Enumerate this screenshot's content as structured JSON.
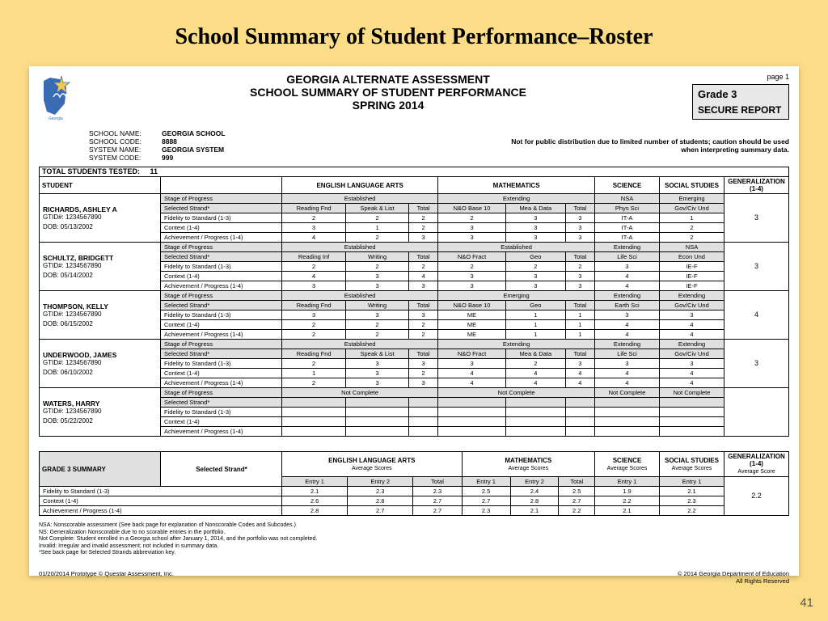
{
  "slide": {
    "title": "School Summary of Student Performance–Roster",
    "number": "41"
  },
  "header": {
    "line1": "GEORGIA ALTERNATE ASSESSMENT",
    "line2": "SCHOOL SUMMARY OF STUDENT PERFORMANCE",
    "line3": "SPRING 2014",
    "page": "page 1",
    "grade": "Grade 3",
    "secure": "SECURE REPORT"
  },
  "meta": {
    "school_name_lab": "SCHOOL NAME:",
    "school_name": "GEORGIA SCHOOL",
    "school_code_lab": "SCHOOL CODE:",
    "school_code": "8888",
    "system_name_lab": "SYSTEM NAME:",
    "system_name": "GEORGIA SYSTEM",
    "system_code_lab": "SYSTEM CODE:",
    "system_code": "999"
  },
  "disclaimer": "Not for public distribution due to limited number of students; caution should be used when interpreting summary data.",
  "totals": {
    "label": "TOTAL STUDENTS TESTED:",
    "value": "11"
  },
  "subjects": {
    "student": "STUDENT",
    "ela": "ENGLISH LANGUAGE ARTS",
    "math": "MATHEMATICS",
    "sci": "SCIENCE",
    "ss": "SOCIAL STUDIES",
    "gen": "GENERALIZATION (1-4)"
  },
  "row_labels": {
    "stage": "Stage of Progress",
    "strand": "Selected Strand*",
    "fidelity": "Fidelity to Standard (1-3)",
    "context": "Context (1-4)",
    "achieve": "Achievement / Progress (1-4)"
  },
  "students": [
    {
      "name": "RICHARDS, ASHLEY A",
      "gtid": "GTID#: 1234567890",
      "dob": "DOB: 05/13/2002",
      "stage": [
        "Established",
        "Extending",
        "NSA",
        "Emerging"
      ],
      "strand_cols": [
        "Reading Fnd",
        "Speak & List",
        "Total",
        "N&O Base 10",
        "Mea & Data",
        "Total",
        "Phys Sci",
        "Gov/Civ Und"
      ],
      "fidelity": [
        "2",
        "2",
        "2",
        "2",
        "3",
        "3",
        "IT-A",
        "1"
      ],
      "context": [
        "3",
        "1",
        "2",
        "3",
        "3",
        "3",
        "IT-A",
        "2"
      ],
      "achieve": [
        "4",
        "2",
        "3",
        "3",
        "3",
        "3",
        "IT-A",
        "2"
      ],
      "gen": "3"
    },
    {
      "name": "SCHULTZ, BRIDGETT",
      "gtid": "GTID#: 1234567890",
      "dob": "DOB: 05/14/2002",
      "stage": [
        "Established",
        "Established",
        "Extending",
        "NSA"
      ],
      "strand_cols": [
        "Reading Inf",
        "Writing",
        "Total",
        "N&O Fract",
        "Geo",
        "Total",
        "Life Sci",
        "Econ Und"
      ],
      "fidelity": [
        "2",
        "2",
        "2",
        "2",
        "2",
        "2",
        "3",
        "IE-F"
      ],
      "context": [
        "4",
        "3",
        "4",
        "3",
        "3",
        "3",
        "4",
        "IE-F"
      ],
      "achieve": [
        "3",
        "3",
        "3",
        "3",
        "3",
        "3",
        "4",
        "IE-F"
      ],
      "gen": "3"
    },
    {
      "name": "THOMPSON, KELLY",
      "gtid": "GTID#: 1234567890",
      "dob": "DOB: 06/15/2002",
      "stage": [
        "Established",
        "Emerging",
        "Extending",
        "Extending"
      ],
      "strand_cols": [
        "Reading Fnd",
        "Writing",
        "Total",
        "N&O Base 10",
        "Geo",
        "Total",
        "Earth Sci",
        "Gov/Civ Und"
      ],
      "fidelity": [
        "3",
        "3",
        "3",
        "ME",
        "1",
        "1",
        "3",
        "3"
      ],
      "context": [
        "2",
        "2",
        "2",
        "ME",
        "1",
        "1",
        "4",
        "4"
      ],
      "achieve": [
        "2",
        "2",
        "2",
        "ME",
        "1",
        "1",
        "4",
        "4"
      ],
      "gen": "4"
    },
    {
      "name": "UNDERWOOD, JAMES",
      "gtid": "GTID#: 1234567890",
      "dob": "DOB: 06/10/2002",
      "stage": [
        "Established",
        "Extending",
        "Extending",
        "Extending"
      ],
      "strand_cols": [
        "Reading Fnd",
        "Speak & List",
        "Total",
        "N&O Fract",
        "Mea & Data",
        "Total",
        "Life Sci",
        "Gov/Civ Und"
      ],
      "fidelity": [
        "2",
        "3",
        "3",
        "3",
        "2",
        "3",
        "3",
        "3"
      ],
      "context": [
        "1",
        "3",
        "2",
        "4",
        "4",
        "4",
        "4",
        "4"
      ],
      "achieve": [
        "2",
        "3",
        "3",
        "4",
        "4",
        "4",
        "4",
        "4"
      ],
      "gen": "3"
    },
    {
      "name": "WATERS, HARRY",
      "gtid": "GTID#: 1234567890",
      "dob": "DOB: 05/22/2002",
      "stage": [
        "Not Complete",
        "Not Complete",
        "Not Complete",
        "Not Complete"
      ],
      "strand_cols": [
        "",
        "",
        "",
        "",
        "",
        "",
        "",
        ""
      ],
      "fidelity": [
        "",
        "",
        "",
        "",
        "",
        "",
        "",
        ""
      ],
      "context": [
        "",
        "",
        "",
        "",
        "",
        "",
        "",
        ""
      ],
      "achieve": [
        "",
        "",
        "",
        "",
        "",
        "",
        "",
        ""
      ],
      "gen": ""
    }
  ],
  "summary": {
    "label": "GRADE 3 SUMMARY",
    "subj_suffix": "Average Scores",
    "gen_suffix": "Average Score",
    "cols": [
      "Entry 1",
      "Entry 2",
      "Total",
      "Entry 1",
      "Entry 2",
      "Total",
      "Entry 1",
      "Entry 1"
    ],
    "fidelity": [
      "2.1",
      "2.3",
      "2.3",
      "2.5",
      "2.4",
      "2.5",
      "1.9",
      "2.1"
    ],
    "context": [
      "2.6",
      "2.8",
      "2.7",
      "2.7",
      "2.8",
      "2.7",
      "2.2",
      "2.3"
    ],
    "achieve": [
      "2.8",
      "2.7",
      "2.7",
      "2.3",
      "2.1",
      "2.2",
      "2.1",
      "2.2"
    ],
    "gen": "2.2"
  },
  "footnotes": [
    "NSA:  Nonscorable assessment (See back page for explanation of Nonscorable Codes and Subcodes.)",
    "NS:  Generalization Nonscorable due to no scorable entries in the portfolio.",
    "Not Complete:  Student enrolled in a Georgia school after January 1, 2014, and the portfolio was not completed.",
    "Invalid:  Irregular and invalid assessment; not included in summary data.",
    "*See back page for Selected Strands abbreviation key."
  ],
  "footer": {
    "left": "01/20/2014    Prototype © Questar Assessment, Inc.",
    "right1": "© 2014 Georgia Department of Education",
    "right2": "All Rights Reserved"
  },
  "colors": {
    "bg": "#fbdc87",
    "grey": "#e0e0e0",
    "white": "#ffffff",
    "black": "#000000"
  }
}
